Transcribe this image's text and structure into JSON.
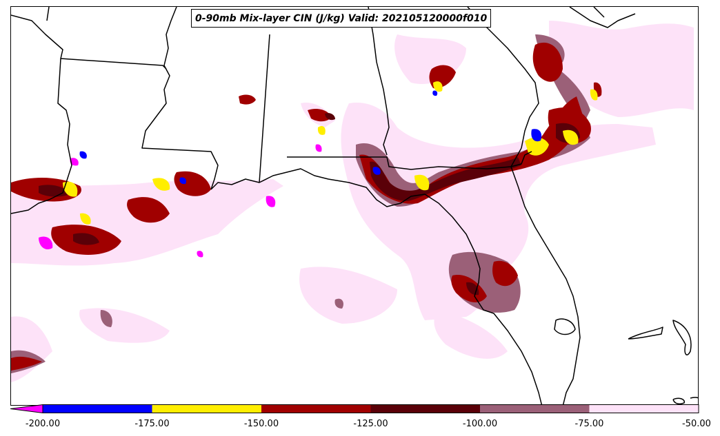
{
  "title": "0-90mb Mix-layer CIN (J/kg) Valid: 202105120000f010",
  "colorbar": {
    "ticks": [
      "-200.00",
      "-175.00",
      "-150.00",
      "-125.00",
      "-100.00",
      "-75.00",
      "-50.00"
    ],
    "levels": [
      {
        "range": "< -200",
        "color": "#ff00ff"
      },
      {
        "range": "-200 to -175",
        "color": "#0000ff"
      },
      {
        "range": "-175 to -150",
        "color": "#ffee00"
      },
      {
        "range": "-150 to -125",
        "color": "#a00000"
      },
      {
        "range": "-125 to -100",
        "color": "#5a0008"
      },
      {
        "range": "-100 to -75",
        "color": "#9b6078"
      },
      {
        "range": "-75 to -50",
        "color": "#fde2f8"
      }
    ]
  }
}
